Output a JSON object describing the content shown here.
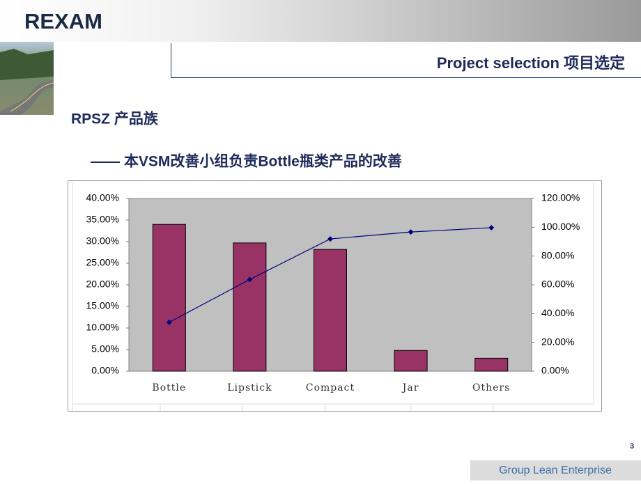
{
  "header": {
    "logo": "REXAM",
    "title": "Project selection 项目选定"
  },
  "heading": "RPSZ 产品族",
  "subheading": "—— 本VSM改善小组负责Bottle瓶类产品的改善",
  "chart_data": {
    "type": "bar",
    "categories": [
      "Bottle",
      "Lipstick",
      "Compact",
      "Jar",
      "Others"
    ],
    "series": [
      {
        "type": "bar",
        "color": "#993366",
        "values": [
          34.0,
          29.7,
          28.2,
          4.8,
          3.0
        ]
      },
      {
        "type": "line",
        "axis": "y2",
        "color": "#000080",
        "values": [
          34.0,
          63.7,
          91.9,
          96.7,
          99.7
        ]
      }
    ],
    "ylim": [
      0,
      40
    ],
    "yticks": [
      {
        "value": 0,
        "label": "0.00%"
      },
      {
        "value": 5,
        "label": "5.00%"
      },
      {
        "value": 10,
        "label": "10.00%"
      },
      {
        "value": 15,
        "label": "15.00%"
      },
      {
        "value": 20,
        "label": "20.00%"
      },
      {
        "value": 25,
        "label": "25.00%"
      },
      {
        "value": 30,
        "label": "30.00%"
      },
      {
        "value": 35,
        "label": "35.00%"
      },
      {
        "value": 40,
        "label": "40.00%"
      }
    ],
    "y2lim": [
      0,
      120
    ],
    "y2ticks": [
      {
        "value": 0,
        "label": "0.00%"
      },
      {
        "value": 20,
        "label": "20.00%"
      },
      {
        "value": 40,
        "label": "40.00%"
      },
      {
        "value": 60,
        "label": "60.00%"
      },
      {
        "value": 80,
        "label": "80.00%"
      },
      {
        "value": 100,
        "label": "100.00%"
      },
      {
        "value": 120,
        "label": "120.00%"
      }
    ],
    "grid": false
  },
  "footer": {
    "page_number": "3",
    "label": "Group Lean Enterprise"
  }
}
